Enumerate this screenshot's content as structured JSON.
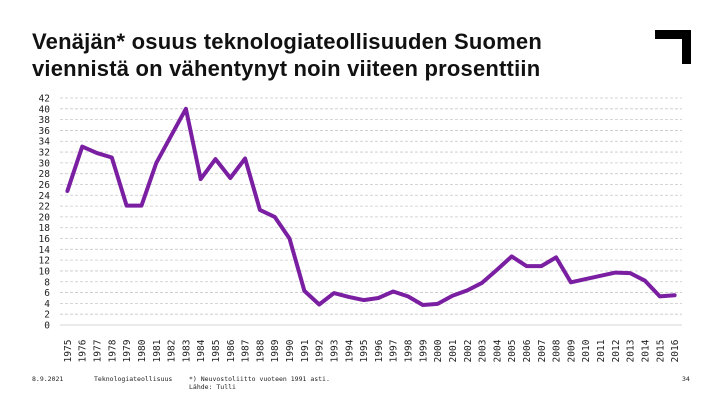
{
  "header": {
    "title_line1": "Venäjän* osuus teknologiateollisuuden Suomen",
    "title_line2": "viennistä on vähentynyt noin viiteen prosenttiin"
  },
  "footer": {
    "date": "8.9.2021",
    "organization": "Teknologiateollisuus",
    "note_line1": "*) Neuvostoliitto vuoteen 1991 asti.",
    "note_line2": "Lähde: Tulli",
    "page_number": "34"
  },
  "colors": {
    "line": "#7b1fa2",
    "grid": "#c8c8c8"
  },
  "chart_data": {
    "type": "line",
    "title": "",
    "xlabel": "",
    "ylabel": "",
    "ylim": [
      0,
      42
    ],
    "ytick_step": 2,
    "grid": true,
    "categories": [
      "1975",
      "1976",
      "1977",
      "1978",
      "1979",
      "1980",
      "1981",
      "1982",
      "1983",
      "1984",
      "1985",
      "1986",
      "1987",
      "1988",
      "1989",
      "1990",
      "1991",
      "1992",
      "1993",
      "1994",
      "1995",
      "1996",
      "1997",
      "1998",
      "1999",
      "2000",
      "2001",
      "2002",
      "2003",
      "2004",
      "2005",
      "2006",
      "2007",
      "2008",
      "2009",
      "2010",
      "2011",
      "2012",
      "2013",
      "2014",
      "2015",
      "2016"
    ],
    "series": [
      {
        "name": "",
        "values": [
          24.8,
          33,
          31.8,
          31,
          22.1,
          22.1,
          30,
          35,
          40,
          27,
          30.7,
          27.2,
          30.8,
          21.3,
          20,
          16,
          6.3,
          3.8,
          5.9,
          5.2,
          4.6,
          5,
          6.2,
          5.3,
          3.7,
          3.9,
          5.4,
          6.4,
          7.8,
          10.2,
          12.7,
          10.9,
          10.9,
          12.5,
          7.9,
          8.5,
          9.1,
          9.7,
          9.6,
          8.2,
          5.3,
          5.5
        ]
      }
    ]
  }
}
